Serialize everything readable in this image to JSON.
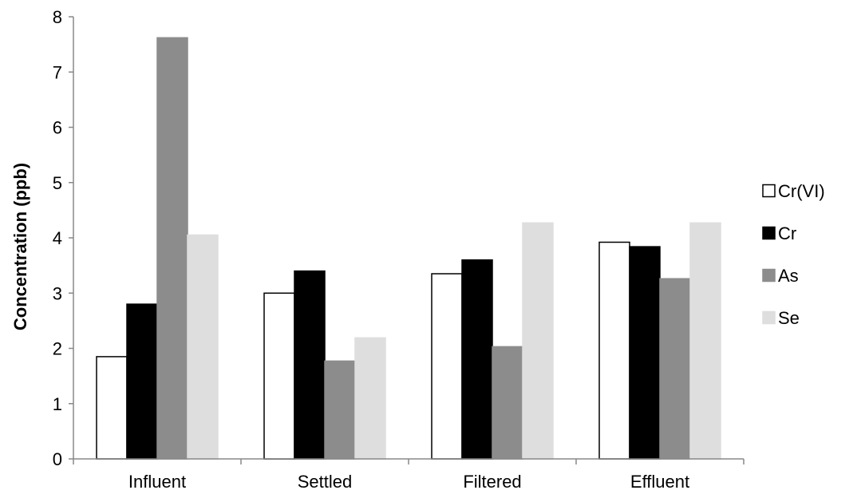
{
  "chart_data": {
    "type": "bar",
    "title": "",
    "xlabel": "",
    "ylabel": "Concentration (ppb)",
    "ylim": [
      0,
      8
    ],
    "yticks": [
      0,
      1,
      2,
      3,
      4,
      5,
      6,
      7,
      8
    ],
    "grid": false,
    "legend_position": "right",
    "categories": [
      "Influent",
      "Settled",
      "Filtered",
      "Effluent"
    ],
    "series": [
      {
        "name": "Cr(VI)",
        "values": [
          1.85,
          3.0,
          3.35,
          3.92
        ],
        "color": "#ffffff",
        "stroke": "#000000"
      },
      {
        "name": "Cr",
        "values": [
          2.8,
          3.4,
          3.6,
          3.84
        ],
        "color": "#000000",
        "stroke": "#000000"
      },
      {
        "name": "As",
        "values": [
          7.62,
          1.77,
          2.03,
          3.26
        ],
        "color": "#8c8c8c",
        "stroke": "#8c8c8c"
      },
      {
        "name": "Se",
        "values": [
          4.05,
          2.19,
          4.27,
          4.27
        ],
        "color": "#dedede",
        "stroke": "#dedede"
      }
    ]
  }
}
